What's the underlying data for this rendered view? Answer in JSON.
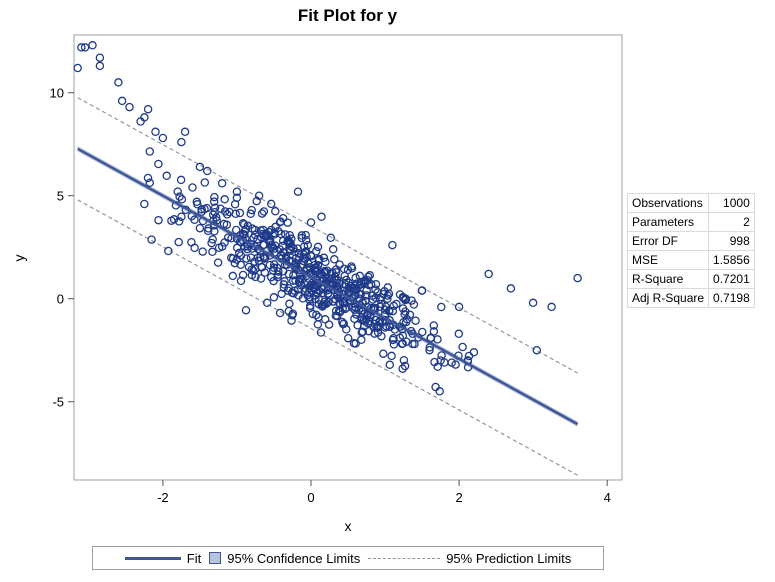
{
  "chart_data": {
    "type": "scatter",
    "title": "Fit Plot for y",
    "xlabel": "x",
    "ylabel": "y",
    "xlim": [
      -3.2,
      4.2
    ],
    "ylim": [
      -8.8,
      12.8
    ],
    "xticks": [
      -2,
      0,
      2,
      4
    ],
    "yticks": [
      -5,
      0,
      5,
      10
    ],
    "fit": {
      "intercept": 1.04,
      "slope": -1.98,
      "x_range": [
        -3.15,
        3.6
      ]
    },
    "prediction_halfwidth": 2.48,
    "confidence_halfwidth": 0.13,
    "sample_points": [
      [
        -3.1,
        12.2
      ],
      [
        -3.05,
        12.2
      ],
      [
        -2.95,
        12.3
      ],
      [
        -3.15,
        11.2
      ],
      [
        -2.85,
        11.7
      ],
      [
        -2.85,
        11.3
      ],
      [
        -2.6,
        10.5
      ],
      [
        -2.55,
        9.6
      ],
      [
        -2.45,
        9.3
      ],
      [
        -2.2,
        9.2
      ],
      [
        -2.3,
        8.6
      ],
      [
        -2.25,
        8.8
      ],
      [
        -2.1,
        8.1
      ],
      [
        -2.0,
        7.8
      ],
      [
        -1.75,
        7.6
      ],
      [
        -1.7,
        8.1
      ],
      [
        -1.5,
        6.4
      ],
      [
        -1.4,
        6.2
      ],
      [
        -1.2,
        5.6
      ],
      [
        -1.0,
        4.9
      ],
      [
        -0.8,
        4.3
      ],
      [
        -0.6,
        3.0
      ],
      [
        -0.4,
        2.1
      ],
      [
        -0.2,
        1.7
      ],
      [
        0.0,
        1.2
      ],
      [
        0.2,
        0.8
      ],
      [
        0.4,
        0.1
      ],
      [
        0.6,
        -0.4
      ],
      [
        0.8,
        -0.9
      ],
      [
        1.0,
        -1.4
      ],
      [
        1.2,
        -1.9
      ],
      [
        1.4,
        -2.2
      ],
      [
        1.6,
        -2.5
      ],
      [
        1.9,
        -3.1
      ],
      [
        1.75,
        -3.0
      ],
      [
        2.2,
        -2.6
      ],
      [
        2.4,
        1.2
      ],
      [
        2.7,
        0.5
      ],
      [
        3.0,
        -0.2
      ],
      [
        3.05,
        -2.5
      ],
      [
        3.25,
        -0.4
      ],
      [
        3.6,
        1.0
      ],
      [
        -1.6,
        5.4
      ],
      [
        -1.3,
        4.2
      ],
      [
        -0.9,
        3.6
      ],
      [
        -0.5,
        1.5
      ],
      [
        0.3,
        2.4
      ],
      [
        0.5,
        1.4
      ],
      [
        0.9,
        0.3
      ],
      [
        1.1,
        2.6
      ],
      [
        1.5,
        0.4
      ],
      [
        -0.3,
        -0.6
      ],
      [
        0.1,
        -0.9
      ],
      [
        0.7,
        -1.6
      ],
      [
        -1.0,
        1.9
      ],
      [
        -1.8,
        5.2
      ],
      [
        -0.7,
        5.0
      ],
      [
        0.0,
        3.7
      ],
      [
        1.3,
        -1.0
      ],
      [
        2.0,
        -0.4
      ]
    ],
    "stats_table": [
      {
        "label": "Observations",
        "value": "1000"
      },
      {
        "label": "Parameters",
        "value": "2"
      },
      {
        "label": "Error DF",
        "value": "998"
      },
      {
        "label": "MSE",
        "value": "1.5856"
      },
      {
        "label": "R-Square",
        "value": "0.7201"
      },
      {
        "label": "Adj R-Square",
        "value": "0.7198"
      }
    ],
    "legend": {
      "fit": "Fit",
      "confidence": "95% Confidence Limits",
      "prediction": "95% Prediction Limits"
    },
    "colors": {
      "points": "#1f3a8a",
      "fit": "#3f5799",
      "confidence_band": "#b7c3dc",
      "prediction": "#8f97a3",
      "frame": "#9aa3ad"
    }
  }
}
